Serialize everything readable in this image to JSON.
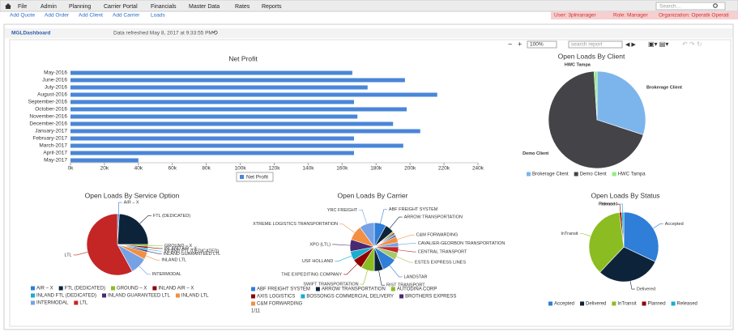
{
  "nav": {
    "menu": [
      "File",
      "Admin",
      "Planning",
      "Carrier Portal",
      "Financials",
      "Master Data",
      "Rates",
      "Reports"
    ],
    "search": "Search...",
    "links": [
      "Add Quote",
      "Add Order",
      "Add Client",
      "Add Carrier",
      "Loads"
    ],
    "user": "User: 3plmanager",
    "role": "Role: Manager",
    "organization": "Organization: Operatk Operati"
  },
  "dashboard": {
    "name": "MGLDashboard",
    "refreshed": "Data refreshed May 8, 2017 at 9:33:55 PM"
  },
  "toolbar": {
    "zoom": "100%",
    "search": "search report"
  },
  "chart_data": [
    {
      "type": "bar",
      "orientation": "horizontal",
      "title": "Net Profit",
      "categories": [
        "May-2016",
        "June-2016",
        "July-2016",
        "August-2016",
        "September-2016",
        "October-2016",
        "November-2016",
        "December-2016",
        "January-2017",
        "February-2017",
        "March-2017",
        "April-2017",
        "May-2017"
      ],
      "series": [
        {
          "name": "Net Profit",
          "color": "#4a86d8",
          "values": [
            166,
            197,
            175,
            216,
            167,
            198,
            169,
            190,
            206,
            167,
            196,
            167,
            40
          ]
        }
      ],
      "xlim": [
        0,
        240
      ],
      "xticks": [
        {
          "value": 0,
          "label": "0k"
        },
        {
          "value": 20,
          "label": "20k"
        },
        {
          "value": 40,
          "label": "40k"
        },
        {
          "value": 60,
          "label": "60k"
        },
        {
          "value": 80,
          "label": "80k"
        },
        {
          "value": 100,
          "label": "100k"
        },
        {
          "value": 120,
          "label": "120k"
        },
        {
          "value": 140,
          "label": "140k"
        },
        {
          "value": 160,
          "label": "160k"
        },
        {
          "value": 180,
          "label": "180k"
        },
        {
          "value": 200,
          "label": "200k"
        },
        {
          "value": 220,
          "label": "220k"
        },
        {
          "value": 240,
          "label": "240k"
        }
      ]
    },
    {
      "type": "pie",
      "title": "Open Loads By Client",
      "categories": [
        "Brokerage Client",
        "Demo Client",
        "HWC Tampa"
      ],
      "values": [
        30,
        69,
        1
      ],
      "colors": [
        "#7cb5ec",
        "#434348",
        "#90ed7d"
      ]
    },
    {
      "type": "pie",
      "title": "Open Loads By Carrier",
      "categories": [
        "ABF FREIGHT SYSTEM",
        "ARROW TRANSPORTATION",
        "AUTODINA CORP",
        "AXIS LOGISTICS",
        "BOSSONGS COMMERCIAL DELIVERY",
        "BROTHERS EXPRESS",
        "C&M FORWARDING",
        "CAVALIER-GEORBON TRANSPORTATION",
        "CENTRAL TRANSPORT",
        "ESTES EXPRESS LINES",
        "LANDSTAR",
        "RIST TRANSPORT",
        "SWIFT TRANSPORTATION",
        "THE EXPEDITING COMPANY",
        "USF HOLLAND",
        "XPO (LTL)",
        "XTREME LOGISTICS TRANSPORTATION",
        "YRC FREIGHT"
      ],
      "values": [
        8,
        6,
        1,
        1,
        1,
        1,
        4,
        3,
        4,
        5,
        10,
        6,
        9,
        7,
        6,
        8,
        10,
        10
      ],
      "colors": [
        "#2f7ed8",
        "#0d233a",
        "#8bbc21",
        "#910000",
        "#1aadce",
        "#492970",
        "#f28f43",
        "#77a1e5",
        "#c42525",
        "#a6c96a",
        "#2f7ed8",
        "#0d233a",
        "#8bbc21",
        "#910000",
        "#1aadce",
        "#492970",
        "#f28f43",
        "#77a1e5"
      ],
      "legend_page": "1/11"
    },
    {
      "type": "pie",
      "title": "Open Loads By Service Option",
      "categories": [
        "AIR – X",
        "FTL (DEDICATED)",
        "GROUND – X",
        "INLAND AIR – X",
        "INLAND FTL (DEDICATED)",
        "INLAND GUARANTEED LTL",
        "INLAND LTL",
        "INTERMODAL",
        "LTL"
      ],
      "values": [
        1,
        24,
        1,
        1,
        1,
        1,
        4,
        9,
        58
      ],
      "colors": [
        "#2f7ed8",
        "#0d233a",
        "#8bbc21",
        "#910000",
        "#1aadce",
        "#492970",
        "#f28f43",
        "#77a1e5",
        "#c42525"
      ]
    },
    {
      "type": "pie",
      "title": "Open Loads By Status",
      "categories": [
        "Accepted",
        "Delivered",
        "InTransit",
        "Planned",
        "Released"
      ],
      "values": [
        32,
        30,
        36,
        1,
        1
      ],
      "colors": [
        "#2f7ed8",
        "#0d233a",
        "#8bbc21",
        "#910000",
        "#1aadce"
      ]
    }
  ]
}
